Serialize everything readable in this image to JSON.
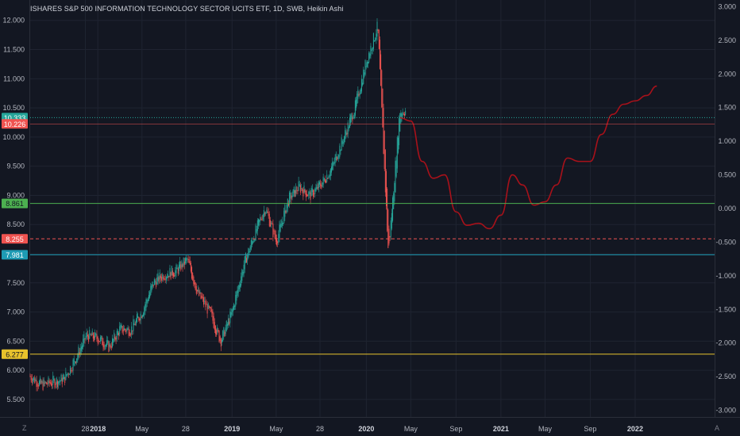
{
  "title": "ISHARES S&P 500 INFORMATION TECHNOLOGY SECTOR UCITS ETF, 1D, SWB, Heikin Ashi",
  "footer": {
    "left_mark": "Z",
    "right_mark": "A"
  },
  "colors": {
    "background": "#131722",
    "grid": "#1f2431",
    "up": "#26a69a",
    "down": "#ef5350",
    "forecast": "#a8111a",
    "cyan_level": "#1e9bb4",
    "green_level": "#4caf50",
    "red_level": "#ef5350",
    "yellow_level": "#e8c22c",
    "teal_level": "#26a69a"
  },
  "chart_data": {
    "type": "line",
    "x_ticks": [
      "28",
      "2018",
      "May",
      "28",
      "2019",
      "May",
      "28",
      "2020",
      "May",
      "Sep",
      "2021",
      "May",
      "Sep",
      "2022"
    ],
    "left_axis": {
      "ylim": [
        5.2,
        12.35
      ],
      "ticks": [
        "12.000",
        "11.500",
        "11.000",
        "10.500",
        "10.000",
        "9.500",
        "9.000",
        "8.500",
        "8.000",
        "7.500",
        "7.000",
        "6.500",
        "6.000",
        "5.500"
      ]
    },
    "right_axis": {
      "ylim": [
        -3.1,
        3.1
      ],
      "ticks": [
        "3.000",
        "2.500",
        "2.000",
        "1.500",
        "1.000",
        "0.500",
        "0.000",
        "-0.500",
        "-1.000",
        "-1.500",
        "-2.000",
        "-2.500",
        "-3.000"
      ]
    },
    "horizontal_levels": [
      {
        "value": 10.333,
        "label": "10.333",
        "color": "#26a69a",
        "style": "dotted"
      },
      {
        "value": 10.226,
        "label": "10.226",
        "color": "#ef5350",
        "style": "solid-thin"
      },
      {
        "value": 8.861,
        "label": "8.861",
        "color": "#4caf50",
        "style": "solid"
      },
      {
        "value": 8.255,
        "label": "8.255",
        "color": "#ef5350",
        "style": "dashed"
      },
      {
        "value": 7.981,
        "label": "7.981",
        "color": "#1e9bb4",
        "style": "solid"
      },
      {
        "value": 6.277,
        "label": "6.277",
        "color": "#e8c22c",
        "style": "solid"
      }
    ],
    "price_series": {
      "name": "",
      "x": [
        "2017-07",
        "2017-08",
        "2017-09",
        "2017-10",
        "2017-11",
        "2017-12",
        "2018-01",
        "2018-02",
        "2018-03",
        "2018-04",
        "2018-05",
        "2018-06",
        "2018-07",
        "2018-08",
        "2018-09",
        "2018-10",
        "2018-11",
        "2018-12",
        "2019-01",
        "2019-02",
        "2019-03",
        "2019-04",
        "2019-05",
        "2019-06",
        "2019-07",
        "2019-08",
        "2019-09",
        "2019-10",
        "2019-11",
        "2019-12",
        "2020-01",
        "2020-02",
        "2020-03",
        "2020-04"
      ],
      "values": [
        5.9,
        5.75,
        5.8,
        5.85,
        6.2,
        6.6,
        6.55,
        6.4,
        6.7,
        6.7,
        7.0,
        7.5,
        7.65,
        7.7,
        7.9,
        7.3,
        7.0,
        6.5,
        7.0,
        7.8,
        8.3,
        8.8,
        8.2,
        8.9,
        9.15,
        9.0,
        9.2,
        9.5,
        10.0,
        10.5,
        11.3,
        11.9,
        8.0,
        10.45
      ]
    },
    "forecast_series": {
      "name": "",
      "x": [
        "2020-04",
        "2020-05",
        "2020-06",
        "2020-07",
        "2020-08",
        "2020-09",
        "2020-10",
        "2020-11",
        "2020-12",
        "2021-01",
        "2021-02",
        "2021-03",
        "2021-04",
        "2021-05",
        "2021-06",
        "2021-07",
        "2021-08",
        "2021-09",
        "2021-10",
        "2021-11",
        "2021-12",
        "2022-01",
        "2022-02",
        "2022-03"
      ],
      "values": [
        1.35,
        1.3,
        0.7,
        0.45,
        0.5,
        -0.05,
        -0.25,
        -0.22,
        -0.3,
        -0.1,
        0.5,
        0.35,
        0.05,
        0.1,
        0.35,
        0.75,
        0.7,
        0.7,
        1.1,
        1.4,
        1.55,
        1.6,
        1.68,
        1.82
      ]
    }
  }
}
